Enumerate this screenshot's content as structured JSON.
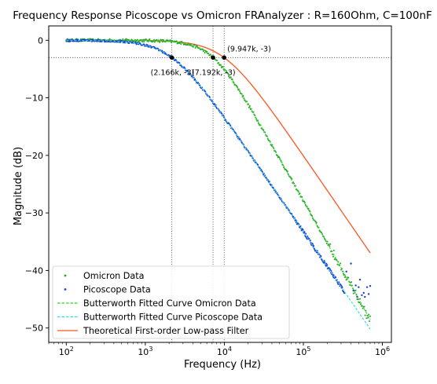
{
  "chart_data": {
    "type": "scatter",
    "title": "Frequency Response Picoscope vs Omicron FRAnalyzer : R=160Ohm, C=100nF",
    "xlabel": "Frequency (Hz)",
    "ylabel": "Magnitude (dB)",
    "x_scale": "log",
    "xlim": [
      60,
      1300000
    ],
    "ylim": [
      -52.5,
      2.5
    ],
    "x_ticks": [
      {
        "value": 100,
        "base": "10",
        "exp": "2"
      },
      {
        "value": 1000,
        "base": "10",
        "exp": "3"
      },
      {
        "value": 10000,
        "base": "10",
        "exp": "4"
      },
      {
        "value": 100000,
        "base": "10",
        "exp": "5"
      },
      {
        "value": 1000000,
        "base": "10",
        "exp": "6"
      }
    ],
    "y_ticks": [
      0,
      -10,
      -20,
      -30,
      -40,
      -50
    ],
    "grid": false,
    "legend_position": "lower left",
    "reference_lines": {
      "y": -3,
      "x": [
        2166,
        7192,
        9947
      ]
    },
    "annotations": [
      {
        "x": 2166,
        "y": -3,
        "label": "(2.166k, -3)"
      },
      {
        "x": 7192,
        "y": -3,
        "label": "(7.192k, -3)"
      },
      {
        "x": 9947,
        "y": -3,
        "label": "(9.947k, -3)"
      }
    ],
    "series": [
      {
        "name": "Omicron Data",
        "kind": "scatter",
        "color": "#2ca02c",
        "model": {
          "fc": 7192,
          "order": 1.22
        },
        "f_range": [
          100,
          700000
        ]
      },
      {
        "name": "Picoscope Data",
        "kind": "scatter",
        "color": "#1f3fd6",
        "model": {
          "fc": 2166,
          "order": 1.0
        },
        "f_range": [
          100,
          700000
        ]
      },
      {
        "name": "Butterworth Fitted Curve Omicron Data",
        "kind": "dashed",
        "color": "#22dd22",
        "model": {
          "fc": 7192,
          "order": 1.22
        },
        "f_range": [
          100,
          700000
        ]
      },
      {
        "name": "Butterworth Fitted Curve Picoscope Data",
        "kind": "dashed",
        "color": "#22dddd",
        "model": {
          "fc": 2166,
          "order": 1.0
        },
        "f_range": [
          100,
          700000
        ]
      },
      {
        "name": "Theoretical First-order Low-pass Filter",
        "kind": "line",
        "color": "#ff5522",
        "model": {
          "fc": 9947,
          "order": 1.0
        },
        "f_range": [
          100,
          700000
        ]
      }
    ],
    "picoscope_noise_points": [
      {
        "x": 350000,
        "y": -40.2
      },
      {
        "x": 400000,
        "y": -38.8
      },
      {
        "x": 430000,
        "y": -43.5
      },
      {
        "x": 460000,
        "y": -42.6
      },
      {
        "x": 480000,
        "y": -44.6
      },
      {
        "x": 500000,
        "y": -42.9
      },
      {
        "x": 520000,
        "y": -41.6
      },
      {
        "x": 550000,
        "y": -44.3
      },
      {
        "x": 580000,
        "y": -43.9
      },
      {
        "x": 600000,
        "y": -44.6
      },
      {
        "x": 640000,
        "y": -42.9
      },
      {
        "x": 670000,
        "y": -44.1
      },
      {
        "x": 700000,
        "y": -42.7
      }
    ]
  }
}
